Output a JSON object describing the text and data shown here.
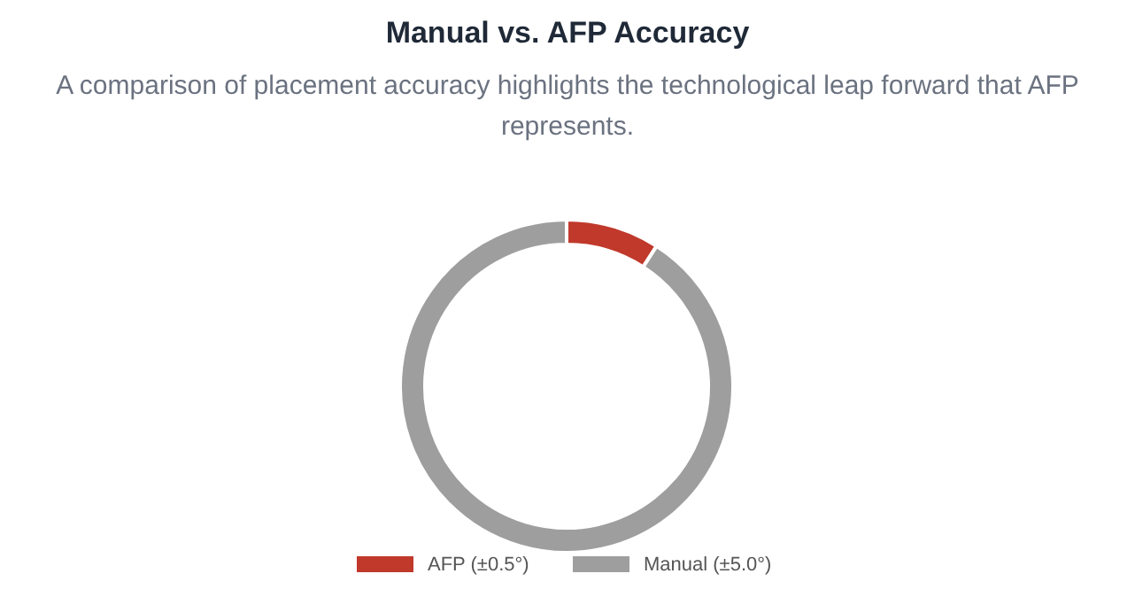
{
  "chart_data": {
    "type": "donut",
    "title": "Manual vs. AFP Accuracy",
    "subtitle": "A comparison of placement accuracy highlights the technological leap forward that AFP represents.",
    "categories": [
      "AFP (±0.5°)",
      "Manual (±5.0°)"
    ],
    "values": [
      0.5,
      5.0
    ],
    "colors": [
      "#c0392b",
      "#9e9e9e"
    ],
    "legend": "bottom"
  }
}
